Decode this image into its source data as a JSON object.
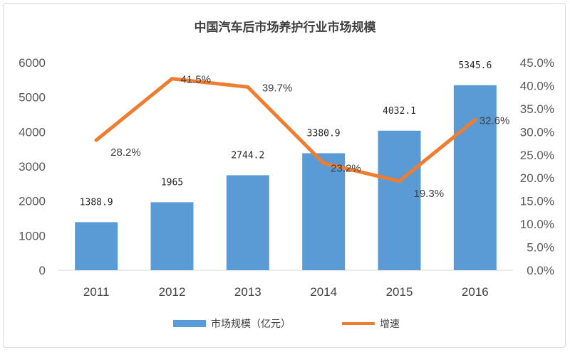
{
  "chart_data": {
    "type": "bar",
    "title": "中国汽车后市场养护行业市场规模",
    "categories": [
      "2011",
      "2012",
      "2013",
      "2014",
      "2015",
      "2016"
    ],
    "series": [
      {
        "name": "市场规模（亿元）",
        "type": "bar",
        "axis": "left",
        "values": [
          1388.9,
          1965,
          2744.2,
          3380.9,
          4032.1,
          5345.6
        ],
        "labels": [
          "1388.9",
          "1965",
          "2744.2",
          "3380.9",
          "4032.1",
          "5345.6"
        ],
        "color": "#5b9bd5"
      },
      {
        "name": "增速",
        "type": "line",
        "axis": "right",
        "values": [
          28.2,
          41.5,
          39.7,
          23.2,
          19.3,
          32.6
        ],
        "labels": [
          "28.2%",
          "41.5%",
          "39.7%",
          "23.2%",
          "19.3%",
          "32.6%"
        ],
        "color": "#ed7d31"
      }
    ],
    "y_left": {
      "lim": [
        0,
        6000
      ],
      "ticks": [
        "0",
        "1000",
        "2000",
        "3000",
        "4000",
        "5000",
        "6000"
      ]
    },
    "y_right": {
      "lim": [
        0,
        45
      ],
      "ticks": [
        "0.0%",
        "5.0%",
        "10.0%",
        "15.0%",
        "20.0%",
        "25.0%",
        "30.0%",
        "35.0%",
        "40.0%",
        "45.0%"
      ]
    },
    "grid": false,
    "legend": "bottom"
  }
}
